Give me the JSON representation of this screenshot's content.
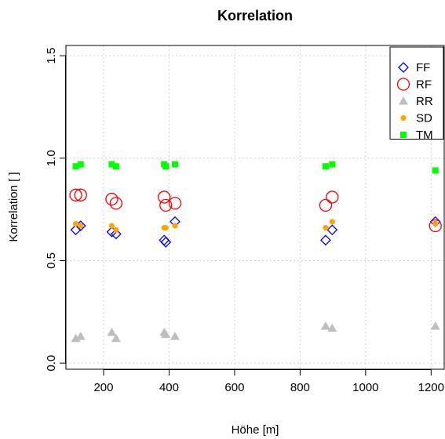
{
  "chart_data": {
    "type": "scatter",
    "title": "Korrelation",
    "xlabel": "Höhe [m]",
    "ylabel": "Korrelation [ ]",
    "xlim": [
      85,
      1240
    ],
    "ylim": [
      -0.03,
      1.55
    ],
    "xticks": [
      200,
      400,
      600,
      800,
      1000,
      1200
    ],
    "yticks": [
      0.0,
      0.5,
      1.0,
      1.5
    ],
    "ytick_labels": [
      "0.0",
      "0.5",
      "1.0",
      "1.5"
    ],
    "grid": true,
    "legend_position": "top-right",
    "series": [
      {
        "name": "FF",
        "marker": "diamond-open",
        "color": "#0000ff",
        "points": [
          [
            115,
            0.65
          ],
          [
            130,
            0.67
          ],
          [
            225,
            0.64
          ],
          [
            238,
            0.63
          ],
          [
            385,
            0.6
          ],
          [
            390,
            0.59
          ],
          [
            418,
            0.69
          ],
          [
            878,
            0.6
          ],
          [
            898,
            0.65
          ],
          [
            1213,
            0.69
          ]
        ]
      },
      {
        "name": "RF",
        "marker": "circle-open",
        "color": "#ff0000",
        "points": [
          [
            115,
            0.82
          ],
          [
            130,
            0.82
          ],
          [
            225,
            0.8
          ],
          [
            238,
            0.78
          ],
          [
            385,
            0.81
          ],
          [
            390,
            0.77
          ],
          [
            418,
            0.78
          ],
          [
            878,
            0.77
          ],
          [
            898,
            0.81
          ],
          [
            1213,
            0.67
          ]
        ]
      },
      {
        "name": "RR",
        "marker": "triangle",
        "color": "#bebebe",
        "points": [
          [
            115,
            0.12
          ],
          [
            130,
            0.13
          ],
          [
            225,
            0.15
          ],
          [
            238,
            0.12
          ],
          [
            385,
            0.15
          ],
          [
            390,
            0.14
          ],
          [
            418,
            0.13
          ],
          [
            878,
            0.18
          ],
          [
            898,
            0.17
          ],
          [
            1213,
            0.18
          ]
        ]
      },
      {
        "name": "SD",
        "marker": "dot",
        "color": "#ffa500",
        "points": [
          [
            115,
            0.68
          ],
          [
            130,
            0.67
          ],
          [
            225,
            0.67
          ],
          [
            238,
            0.65
          ],
          [
            385,
            0.66
          ],
          [
            390,
            0.66
          ],
          [
            418,
            0.67
          ],
          [
            878,
            0.66
          ],
          [
            898,
            0.69
          ],
          [
            1213,
            0.68
          ]
        ]
      },
      {
        "name": "TM",
        "marker": "square",
        "color": "#00ff00",
        "points": [
          [
            115,
            0.96
          ],
          [
            130,
            0.97
          ],
          [
            225,
            0.97
          ],
          [
            238,
            0.96
          ],
          [
            385,
            0.97
          ],
          [
            390,
            0.96
          ],
          [
            418,
            0.97
          ],
          [
            878,
            0.96
          ],
          [
            898,
            0.97
          ],
          [
            1213,
            0.94
          ]
        ]
      }
    ]
  }
}
